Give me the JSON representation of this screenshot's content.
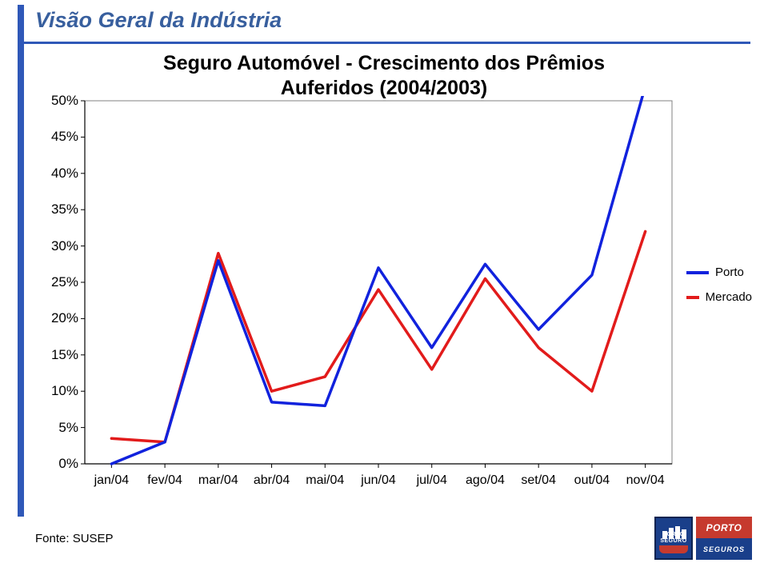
{
  "page_title": "Visão Geral da Indústria",
  "chart": {
    "type": "line",
    "title_line1": "Seguro Automóvel - Crescimento dos Prêmios",
    "title_line2": "Auferidos (2004/2003)",
    "background_color": "#ffffff",
    "plot_bg_color": "#ffffff",
    "plot_area_border_color": "#808080",
    "axis_color": "#000000",
    "grid_on": false,
    "ylim": [
      0,
      50
    ],
    "ytick_step": 5,
    "yticks": [
      "0%",
      "5%",
      "10%",
      "15%",
      "20%",
      "25%",
      "30%",
      "35%",
      "40%",
      "45%",
      "50%"
    ],
    "xticks": [
      "jan/04",
      "fev/04",
      "mar/04",
      "abr/04",
      "mai/04",
      "jun/04",
      "jul/04",
      "ago/04",
      "set/04",
      "out/04",
      "nov/04"
    ],
    "line_width": 3.5,
    "series": [
      {
        "name": "Porto",
        "color": "#1122dd",
        "values": [
          0,
          3,
          28,
          8.5,
          8,
          27,
          16,
          27.5,
          18.5,
          26,
          52
        ]
      },
      {
        "name": "Mercado",
        "color": "#e21b1b",
        "values": [
          3.5,
          3,
          29,
          10,
          12,
          24,
          13,
          25.5,
          16,
          10,
          32
        ]
      }
    ],
    "legend": {
      "position": "right-middle",
      "items": [
        {
          "label": "Porto",
          "color": "#1122dd"
        },
        {
          "label": "Mercado",
          "color": "#e21b1b"
        }
      ]
    },
    "ylabel_fontsize": 17,
    "xlabel_fontsize": 16,
    "title_fontsize": 25
  },
  "footer": {
    "source": "Fonte: SUSEP"
  },
  "logo": {
    "word1": "PORTO",
    "word2": "SEGURO",
    "word3": "SEGUROS"
  }
}
